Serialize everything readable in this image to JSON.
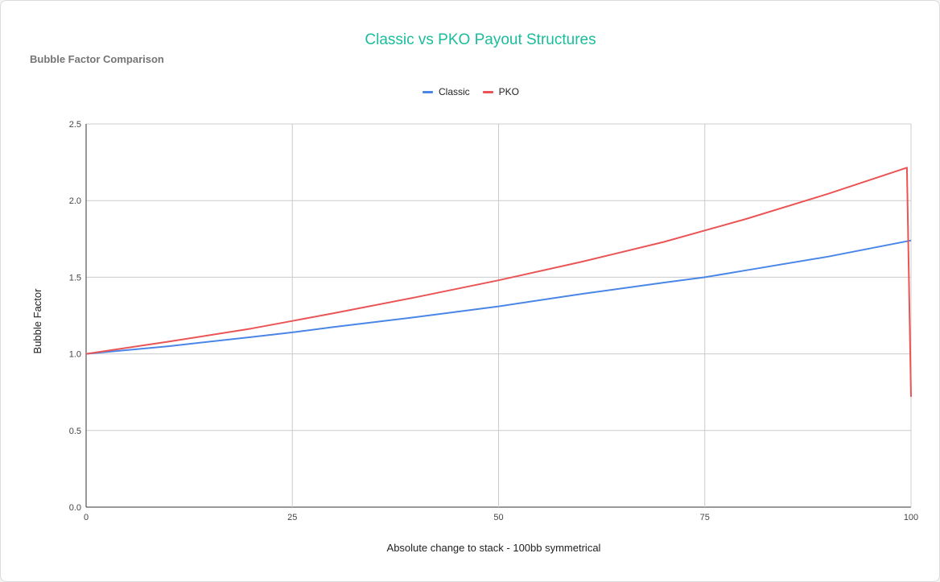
{
  "chart_data": {
    "type": "line",
    "title": "Classic vs PKO Payout Structures",
    "subtitle": "Bubble Factor Comparison",
    "xlabel": "Absolute change to stack - 100bb symmetrical",
    "ylabel": "Bubble Factor",
    "xlim": [
      0,
      100
    ],
    "ylim": [
      0,
      2.5
    ],
    "x_ticks": [
      "0",
      "25",
      "50",
      "75",
      "100"
    ],
    "y_ticks": [
      "0.0",
      "0.5",
      "1.0",
      "1.5",
      "2.0",
      "2.5"
    ],
    "grid": true,
    "legend_position": "top",
    "series": [
      {
        "name": "Classic",
        "color": "#4a86e8",
        "points": [
          [
            0,
            1.0
          ],
          [
            10,
            1.05
          ],
          [
            20,
            1.11
          ],
          [
            25,
            1.14
          ],
          [
            30,
            1.175
          ],
          [
            40,
            1.24
          ],
          [
            50,
            1.31
          ],
          [
            60,
            1.39
          ],
          [
            70,
            1.465
          ],
          [
            75,
            1.5
          ],
          [
            80,
            1.545
          ],
          [
            90,
            1.635
          ],
          [
            100,
            1.74
          ]
        ]
      },
      {
        "name": "PKO",
        "color": "#ea5455",
        "points": [
          [
            0,
            1.0
          ],
          [
            10,
            1.08
          ],
          [
            20,
            1.165
          ],
          [
            25,
            1.215
          ],
          [
            30,
            1.265
          ],
          [
            40,
            1.37
          ],
          [
            50,
            1.48
          ],
          [
            60,
            1.6
          ],
          [
            70,
            1.73
          ],
          [
            75,
            1.805
          ],
          [
            80,
            1.88
          ],
          [
            90,
            2.045
          ],
          [
            99.5,
            2.215
          ],
          [
            100,
            0.72
          ]
        ]
      }
    ]
  }
}
